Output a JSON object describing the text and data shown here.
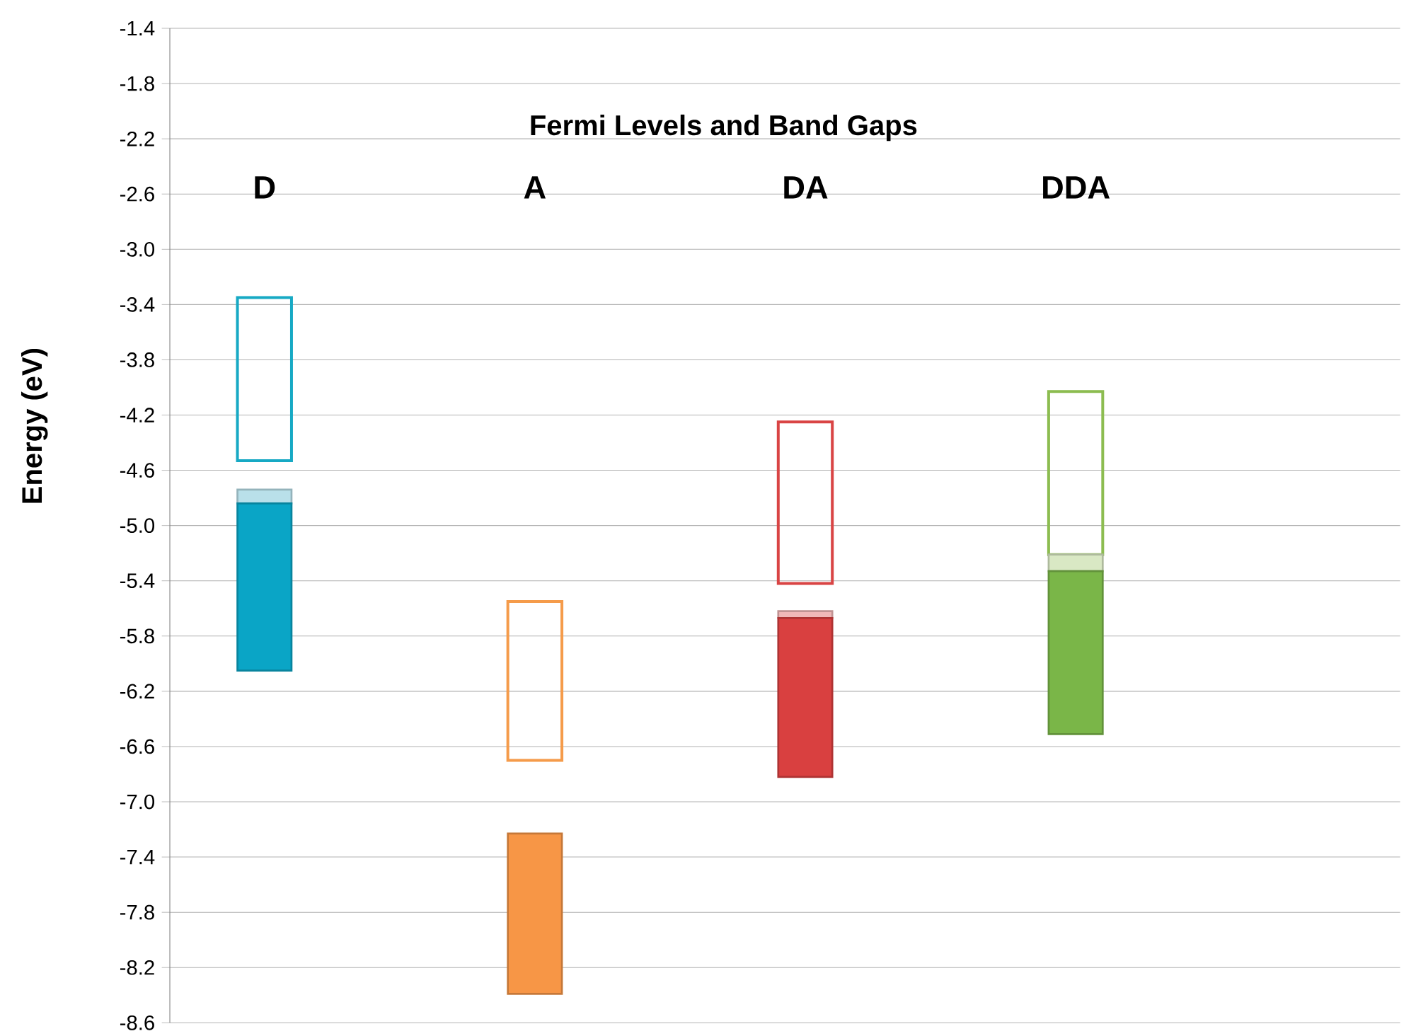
{
  "chart_data": {
    "type": "bar",
    "title": "Fermi Levels and Band Gaps",
    "ylabel": "Energy (eV)",
    "categories": [
      "D",
      "A",
      "DA",
      "DDA"
    ],
    "series": [
      {
        "line_style": "solid",
        "colors": [
          "#17a9c4",
          "#f59b4a",
          "#d94444",
          "#8cbc50"
        ],
        "base": [
          -4.53,
          -6.7,
          -5.42,
          -5.21
        ],
        "values": [
          1.18,
          1.15,
          1.17,
          1.18
        ]
      },
      {
        "colors": [
          "#b9e0ea",
          null,
          "#f0b8b8",
          "#d9e8c4"
        ],
        "base": [
          -4.84,
          null,
          -5.67,
          -5.33
        ],
        "values": [
          0.1,
          null,
          0.05,
          0.12
        ]
      },
      {
        "colors": [
          "#0aa5c6",
          "#f79646",
          "#d94040",
          "#7ab648"
        ],
        "base": [
          -6.05,
          -8.39,
          -6.82,
          -6.51
        ],
        "values": [
          1.21,
          1.16,
          1.15,
          1.18
        ]
      }
    ],
    "ylim": [
      -8.6,
      -1.4
    ],
    "yticks": [
      -8.6,
      -8.2,
      -7.8,
      -7.4,
      {
        "value": -7.0,
        "label": "-7.0"
      },
      -6.6,
      -6.2,
      -5.8,
      -5.4,
      {
        "value": -5.0,
        "label": "-5.0"
      },
      -4.6,
      -4.2,
      -3.8,
      -3.4,
      {
        "value": -3.0,
        "label": "-3.0"
      },
      -2.6,
      -2.2,
      -1.8,
      -1.4
    ],
    "grid": "y",
    "tick_labels": "y"
  }
}
